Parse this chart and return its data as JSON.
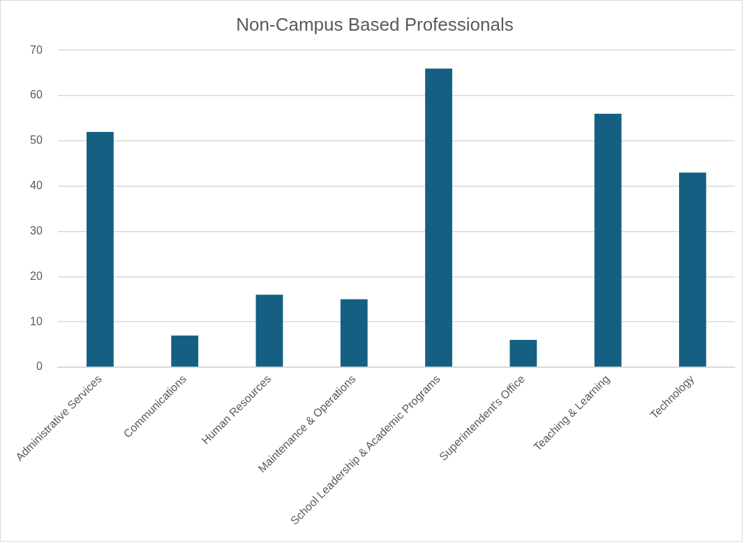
{
  "chart_data": {
    "type": "bar",
    "title": "Non-Campus Based Professionals",
    "categories": [
      "Administrative Services",
      "Communications",
      "Human Resources",
      "Maintenance & Operations",
      "School Leadership & Academic Programs",
      "Superintendent's Office",
      "Teaching & Learning",
      "Technology"
    ],
    "values": [
      52,
      7,
      16,
      15,
      66,
      6,
      56,
      43
    ],
    "color": "#156082",
    "ylim": [
      0,
      70
    ],
    "yticks": [
      0,
      10,
      20,
      30,
      40,
      50,
      60,
      70
    ],
    "grid": "y",
    "legend": false
  }
}
